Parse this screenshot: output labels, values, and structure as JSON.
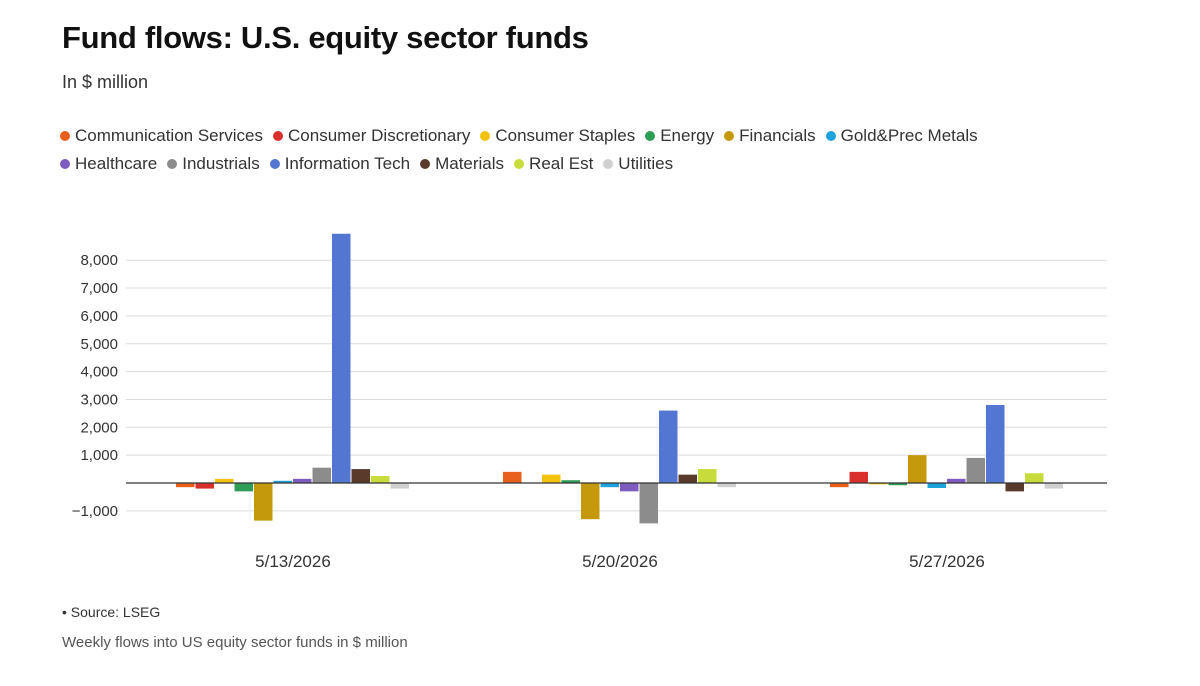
{
  "header": {
    "title": "Fund flows: U.S. equity sector funds",
    "subtitle": "In $ million"
  },
  "footer": {
    "source": "• Source: LSEG",
    "caption": "Weekly flows into US equity sector funds in $ million"
  },
  "chart_data": {
    "type": "bar",
    "title": "Fund flows: U.S. equity sector funds",
    "subtitle": "In $ million",
    "xlabel": "",
    "ylabel": "",
    "categories": [
      "5/13/2026",
      "5/20/2026",
      "5/27/2026"
    ],
    "ylim": [
      -1500,
      9000
    ],
    "yticks": [
      -1000,
      1000,
      2000,
      3000,
      4000,
      5000,
      6000,
      7000,
      8000
    ],
    "ytick_labels": [
      "−1,000",
      "1,000",
      "2,000",
      "3,000",
      "4,000",
      "5,000",
      "6,000",
      "7,000",
      "8,000"
    ],
    "grid": true,
    "legend_position": "top",
    "series": [
      {
        "name": "Communication Services",
        "color": "#e8601c",
        "values": [
          -150,
          400,
          -150
        ]
      },
      {
        "name": "Consumer Discretionary",
        "color": "#d9302c",
        "values": [
          -200,
          0,
          400
        ]
      },
      {
        "name": "Consumer Staples",
        "color": "#f2c20f",
        "values": [
          150,
          300,
          -50
        ]
      },
      {
        "name": "Energy",
        "color": "#2e9e57",
        "values": [
          -300,
          100,
          -80
        ]
      },
      {
        "name": "Financials",
        "color": "#c49a0c",
        "values": [
          -1350,
          -1300,
          1000
        ]
      },
      {
        "name": "Gold&Prec Metals",
        "color": "#1fa3dc",
        "values": [
          80,
          -150,
          -180
        ]
      },
      {
        "name": "Healthcare",
        "color": "#7d5bbf",
        "values": [
          150,
          -300,
          150
        ]
      },
      {
        "name": "Industrials",
        "color": "#8c8c8c",
        "values": [
          550,
          -1450,
          900
        ]
      },
      {
        "name": "Information Tech",
        "color": "#5276d1",
        "values": [
          8950,
          2600,
          2800
        ]
      },
      {
        "name": "Materials",
        "color": "#5a3a2a",
        "values": [
          500,
          300,
          -300
        ]
      },
      {
        "name": "Real Est",
        "color": "#c7dc3a",
        "values": [
          250,
          500,
          350
        ]
      },
      {
        "name": "Utilities",
        "color": "#d0d0d0",
        "values": [
          -200,
          -150,
          -200
        ]
      }
    ]
  }
}
